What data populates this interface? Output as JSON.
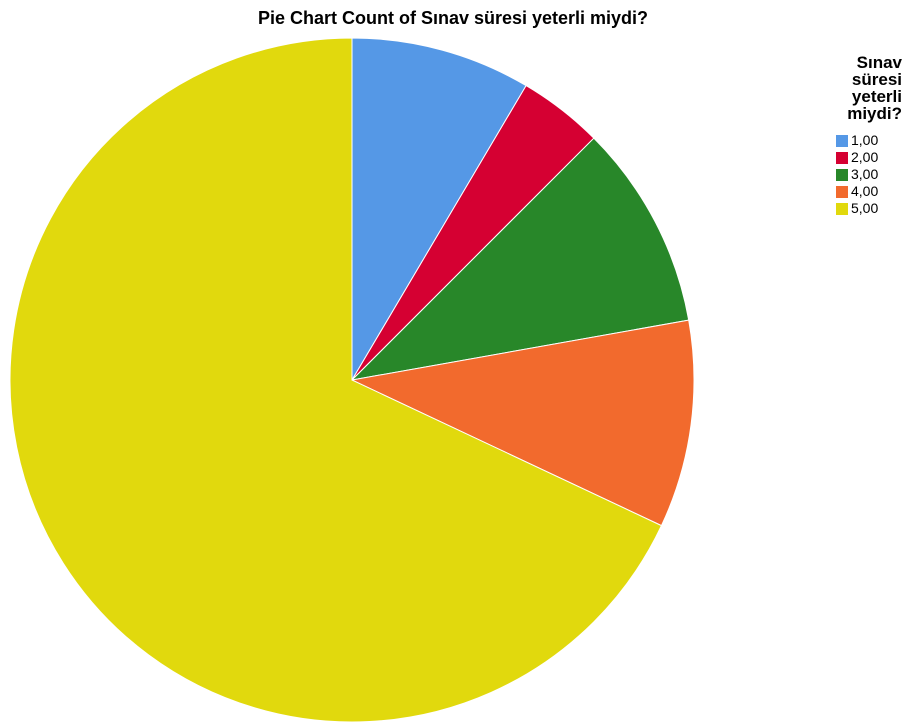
{
  "chart_data": {
    "type": "pie",
    "title": "Pie Chart Count of Sınav süresi yeterli miydi?",
    "legend_title": "Sınav süresi yeterli miydi?",
    "legend_title_lines": [
      "Sınav",
      "süresi",
      "yeterli",
      "miydi?"
    ],
    "legend_position": "top-right",
    "categories": [
      "1,00",
      "2,00",
      "3,00",
      "4,00",
      "5,00"
    ],
    "values": [
      8.5,
      4.0,
      9.7,
      9.8,
      68.0
    ],
    "colors": [
      "#5598e6",
      "#d50032",
      "#288729",
      "#f26a2d",
      "#e1d90d"
    ],
    "start_angle": "12 o'clock",
    "direction": "clockwise"
  }
}
